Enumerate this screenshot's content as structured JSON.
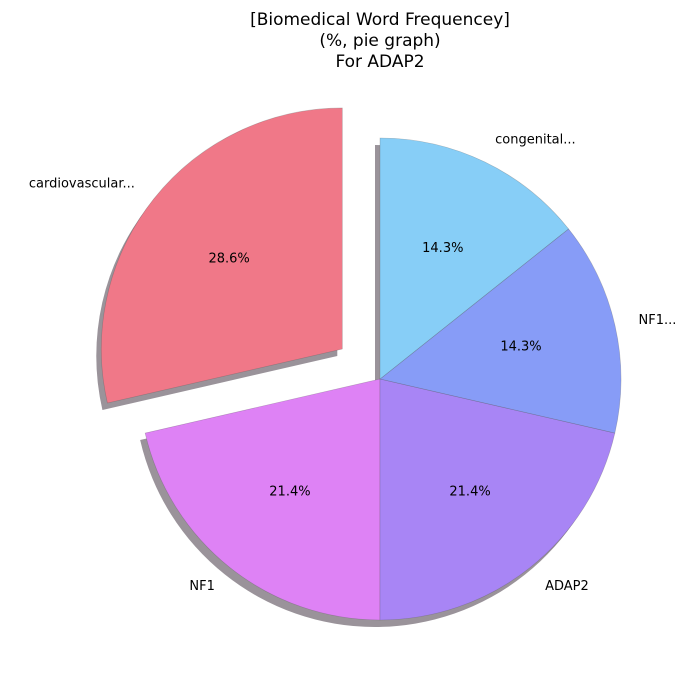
{
  "chart_data": {
    "type": "pie",
    "title_lines": [
      "[Biomedical Word Frequencey]",
      "(%, pie graph)",
      "For ADAP2"
    ],
    "slices": [
      {
        "label": "cardiovascular...",
        "value": 28.6,
        "pct_label": "28.6%",
        "color": "#F07888",
        "exploded": true
      },
      {
        "label": "NF1",
        "value": 21.4,
        "pct_label": "21.4%",
        "color": "#DE82F5",
        "exploded": false
      },
      {
        "label": "ADAP2",
        "value": 21.4,
        "pct_label": "21.4%",
        "color": "#A885F5",
        "exploded": false
      },
      {
        "label": "NF1...",
        "value": 14.3,
        "pct_label": "14.3%",
        "color": "#879CF7",
        "exploded": false
      },
      {
        "label": "congenital...",
        "value": 14.3,
        "pct_label": "14.3%",
        "color": "#87CEF7",
        "exploded": false
      }
    ],
    "start_angle_deg": 90,
    "direction": "counterclockwise",
    "shadow": true
  }
}
